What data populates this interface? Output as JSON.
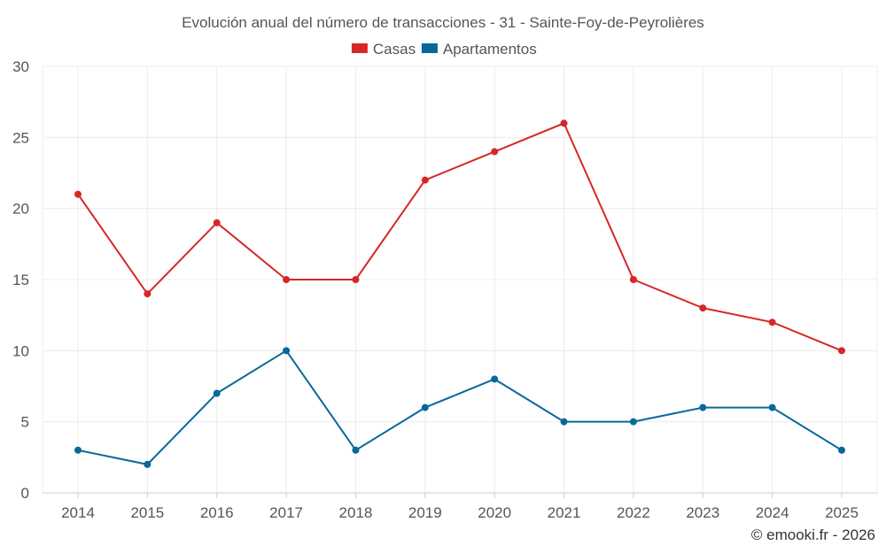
{
  "chart_data": {
    "type": "line",
    "title": "Evolución anual del número de transacciones - 31 - Sainte-Foy-de-Peyrolières",
    "categories": [
      "2014",
      "2015",
      "2016",
      "2017",
      "2018",
      "2019",
      "2020",
      "2021",
      "2022",
      "2023",
      "2024",
      "2025"
    ],
    "series": [
      {
        "name": "Casas",
        "color": "#d62728",
        "values": [
          21,
          14,
          19,
          15,
          15,
          22,
          24,
          26,
          15,
          13,
          12,
          10
        ]
      },
      {
        "name": "Apartamentos",
        "color": "#08689b",
        "values": [
          3,
          2,
          7,
          10,
          3,
          6,
          8,
          5,
          5,
          6,
          6,
          3
        ]
      }
    ],
    "ylim": [
      0,
      30
    ],
    "yticks": [
      0,
      5,
      10,
      15,
      20,
      25,
      30
    ],
    "grid": true,
    "legend": "top-center",
    "credit": "© emooki.fr - 2026"
  }
}
